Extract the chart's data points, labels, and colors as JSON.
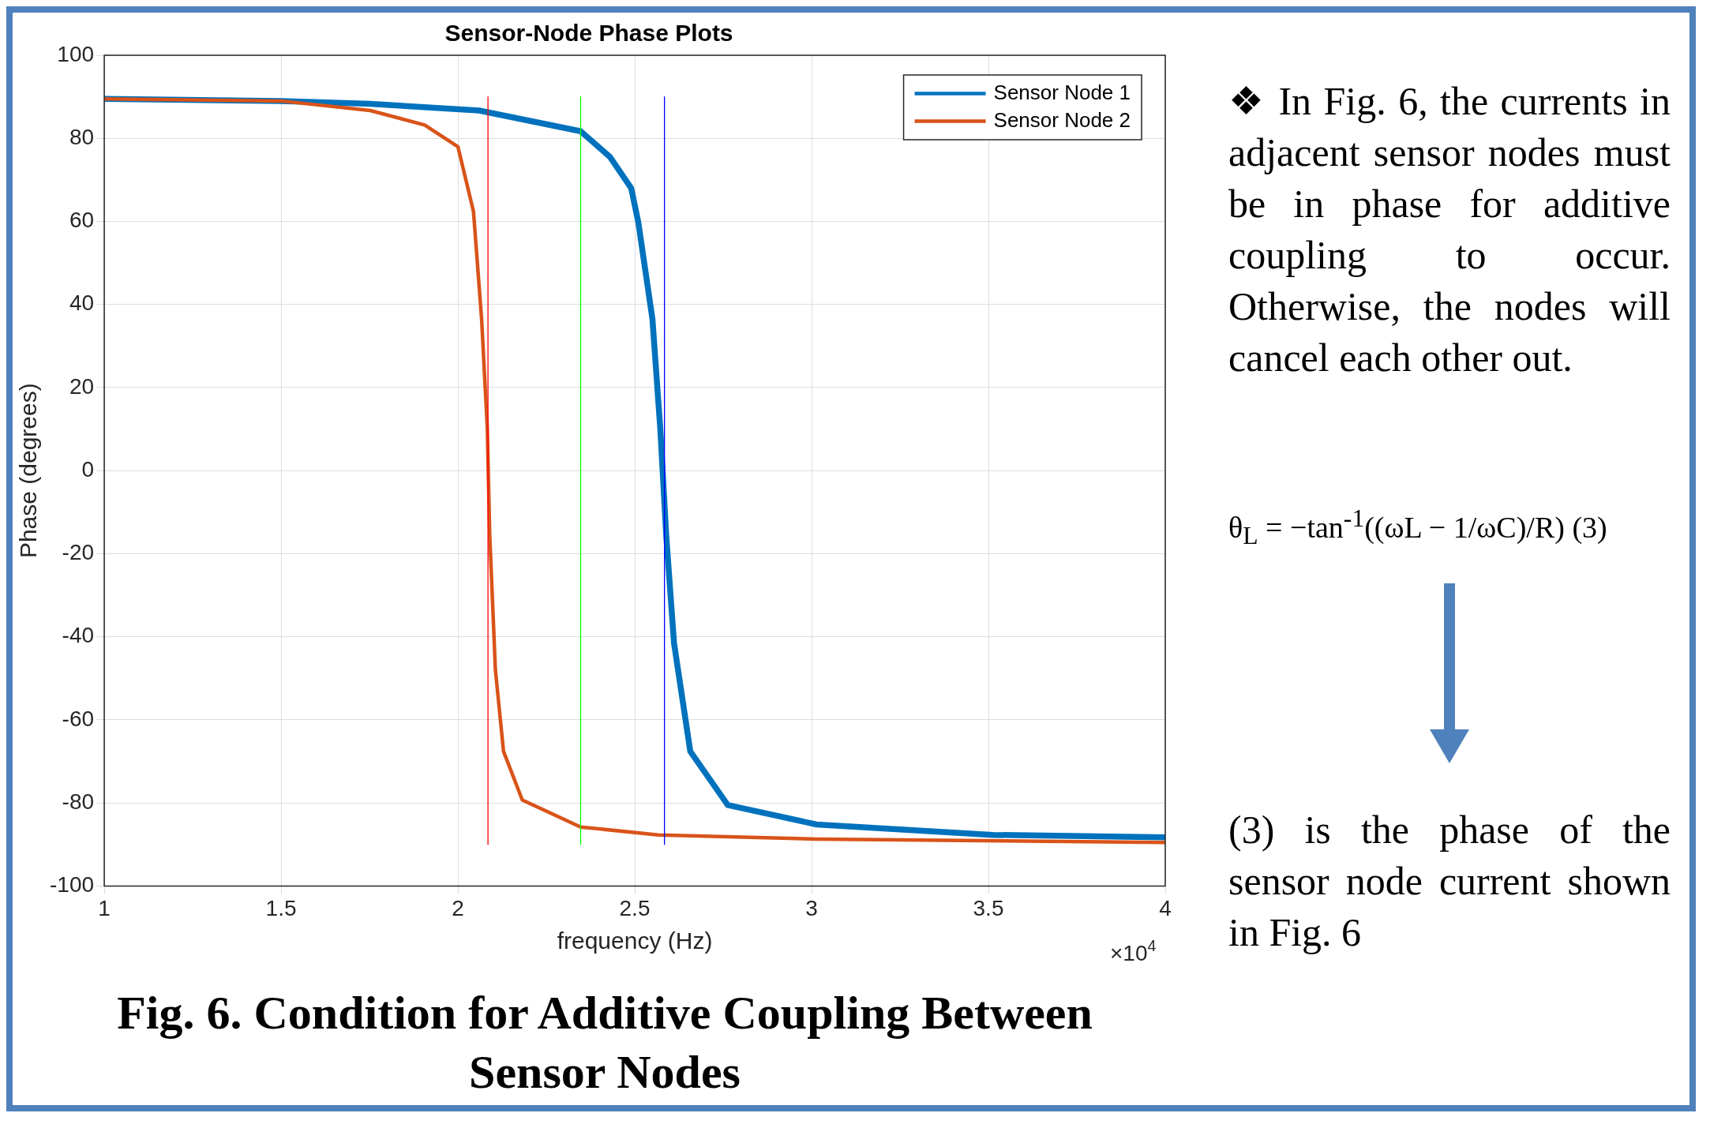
{
  "chart_data": {
    "type": "line",
    "title": "Sensor-Node Phase Plots",
    "xlabel": "frequency (Hz)",
    "ylabel": "Phase (degrees)",
    "xlim": [
      1,
      4
    ],
    "xticks": [
      1,
      1.5,
      2,
      2.5,
      3,
      3.5,
      4
    ],
    "ylim": [
      -100,
      100
    ],
    "yticks": [
      -100,
      -80,
      -60,
      -40,
      -20,
      0,
      20,
      40,
      60,
      80,
      100
    ],
    "grid": true,
    "legend": "top right",
    "marker": "none",
    "line_style": "solid",
    "series": [
      {
        "name": "Sensor Node 1",
        "color": "#0072bd",
        "x": [
          1,
          1.5,
          1.75,
          2.06,
          2.347,
          2.43,
          2.49,
          2.51,
          2.55,
          2.572,
          2.589,
          2.611,
          2.657,
          2.763,
          3.014,
          3.513,
          4
        ],
        "values": [
          89.5,
          89,
          88.3,
          86.7,
          81.7,
          75.5,
          68,
          59.8,
          36.5,
          10.3,
          -15.6,
          -41.5,
          -67.6,
          -80.5,
          -85.2,
          -87.7,
          -88.3
        ]
      },
      {
        "name": "Sensor Node 2",
        "color": "#d95319",
        "x": [
          1,
          1.5,
          1.752,
          1.906,
          2,
          2.044,
          2.067,
          2.083,
          2.09,
          2.106,
          2.129,
          2.182,
          2.347,
          2.566,
          3.014,
          4
        ],
        "values": [
          89.5,
          89,
          86.7,
          83.2,
          78,
          62.4,
          36.5,
          10.3,
          -15.6,
          -48,
          -67.6,
          -79.3,
          -85.8,
          -87.7,
          -88.7,
          -89.5
        ]
      },
      {
        "color": "#ff0000",
        "x": [
          2.085,
          2.085
        ],
        "values": [
          90,
          -90
        ]
      },
      {
        "color": "#00ff00",
        "x": [
          2.347,
          2.347
        ],
        "values": [
          90,
          -90
        ]
      },
      {
        "color": "#0000ff",
        "x": [
          2.584,
          2.584
        ],
        "values": [
          90,
          -90
        ]
      }
    ],
    "annotations": [
      "×10$^{4}$",
      "Fig. 6. Condition for Additive Coupling Between Sensor Nodes",
      "❖ In Fig. 6, the currents in adjacent sensor nodes must be in phase for additive coupling to occur. Otherwise, the nodes will cancel each other out.",
      "θ$_{L}$ = −tan$^{-1}$((ωL − 1/ωC)/R) (3)",
      "(3) is the phase of the sensor node current shown in Fig. 6"
    ]
  }
}
